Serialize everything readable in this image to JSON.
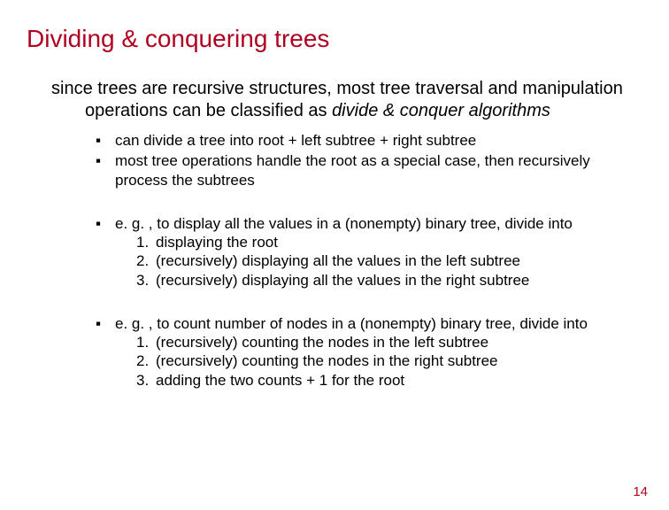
{
  "colors": {
    "accent": "#b00020",
    "text": "#000000",
    "background": "#ffffff"
  },
  "title": "Dividing & conquering trees",
  "intro_plain": "since trees are recursive structures, most tree traversal and manipulation operations can be classified as ",
  "intro_italic": "divide & conquer algorithms",
  "bullets_a": [
    "can divide a tree into root + left subtree + right subtree",
    "most tree operations handle the root as a special case, then recursively process the subtrees"
  ],
  "example1_lead": "e. g. , to display all the values in a (nonempty) binary tree, divide into",
  "example1_items": [
    "displaying the root",
    "(recursively) displaying all the values in the left subtree",
    "(recursively) displaying all the values in the right subtree"
  ],
  "example2_lead": "e. g. , to count number of nodes in a (nonempty) binary tree, divide into",
  "example2_items": [
    "(recursively) counting the nodes in the left subtree",
    "(recursively) counting the nodes in the right subtree",
    "adding the two counts + 1 for the root"
  ],
  "page_number": "14"
}
